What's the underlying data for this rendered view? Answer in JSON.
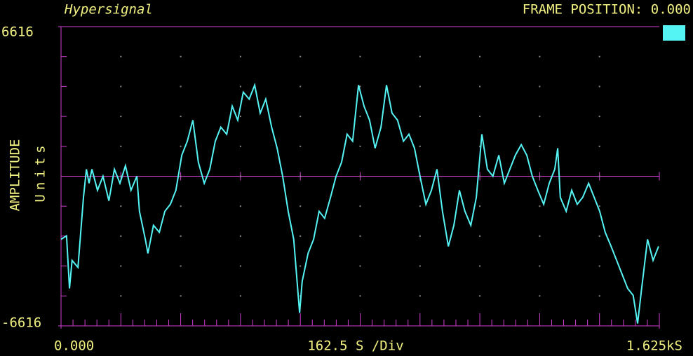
{
  "chart_data": {
    "type": "line",
    "title": "Hypersignal",
    "frame_position": "FRAME POSITION: 0.000",
    "y_label": "AMPLITUDE",
    "y_unit": "Units",
    "x_label": "162.5 S /Div",
    "xlim": [
      0,
      1625
    ],
    "ylim": [
      -6616,
      6616
    ],
    "xticks": [
      {
        "value": 0,
        "label": "0.000"
      },
      {
        "value": 1625,
        "label": "1.625kS"
      }
    ],
    "yticks": [
      -6616,
      6616
    ],
    "grid": true,
    "series": [
      {
        "color": "#55f4f4",
        "x": [
          0,
          15,
          23,
          30,
          46,
          61,
          69,
          76,
          84,
          99,
          114,
          130,
          145,
          160,
          175,
          190,
          206,
          213,
          229,
          236,
          251,
          267,
          282,
          297,
          312,
          328,
          343,
          358,
          373,
          389,
          404,
          419,
          434,
          450,
          465,
          480,
          495,
          511,
          526,
          541,
          556,
          572,
          587,
          602,
          617,
          632,
          648,
          655,
          671,
          686,
          701,
          716,
          732,
          747,
          762,
          777,
          792,
          808,
          823,
          838,
          853,
          869,
          884,
          899,
          914,
          930,
          945,
          960,
          975,
          991,
          1006,
          1021,
          1036,
          1052,
          1067,
          1082,
          1097,
          1113,
          1128,
          1143,
          1158,
          1173,
          1189,
          1204,
          1219,
          1234,
          1250,
          1265,
          1280,
          1295,
          1311,
          1326,
          1341,
          1349,
          1356,
          1372,
          1387,
          1402,
          1417,
          1433,
          1448,
          1463,
          1478,
          1494,
          1509,
          1524,
          1539,
          1554,
          1566,
          1577,
          1593,
          1608,
          1623
        ],
        "values": [
          -2790,
          -2635,
          -4960,
          -3720,
          -4030,
          -930,
          310,
          -310,
          310,
          -620,
          0,
          -1085,
          310,
          -310,
          465,
          -620,
          0,
          -1550,
          -2790,
          -3410,
          -2170,
          -2480,
          -1550,
          -1240,
          -620,
          930,
          1550,
          2480,
          620,
          -310,
          310,
          1550,
          2170,
          1860,
          3100,
          2480,
          3720,
          3410,
          4030,
          2790,
          3410,
          2170,
          1240,
          0,
          -1550,
          -2790,
          -6045,
          -4650,
          -3410,
          -2790,
          -1550,
          -1860,
          -930,
          0,
          620,
          1860,
          1550,
          4030,
          3100,
          2480,
          1240,
          2170,
          4030,
          2790,
          2480,
          1550,
          1860,
          1240,
          0,
          -1240,
          -620,
          310,
          -1550,
          -3100,
          -2170,
          -620,
          -1550,
          -2170,
          -930,
          1860,
          310,
          0,
          930,
          -310,
          310,
          930,
          1395,
          930,
          0,
          -620,
          -1240,
          -310,
          310,
          1240,
          -930,
          -1550,
          -620,
          -1240,
          -930,
          -310,
          -930,
          -1550,
          -2480,
          -3100,
          -3720,
          -4340,
          -4960,
          -5270,
          -6510,
          -4960,
          -2790,
          -3720,
          -3100
        ]
      }
    ]
  }
}
